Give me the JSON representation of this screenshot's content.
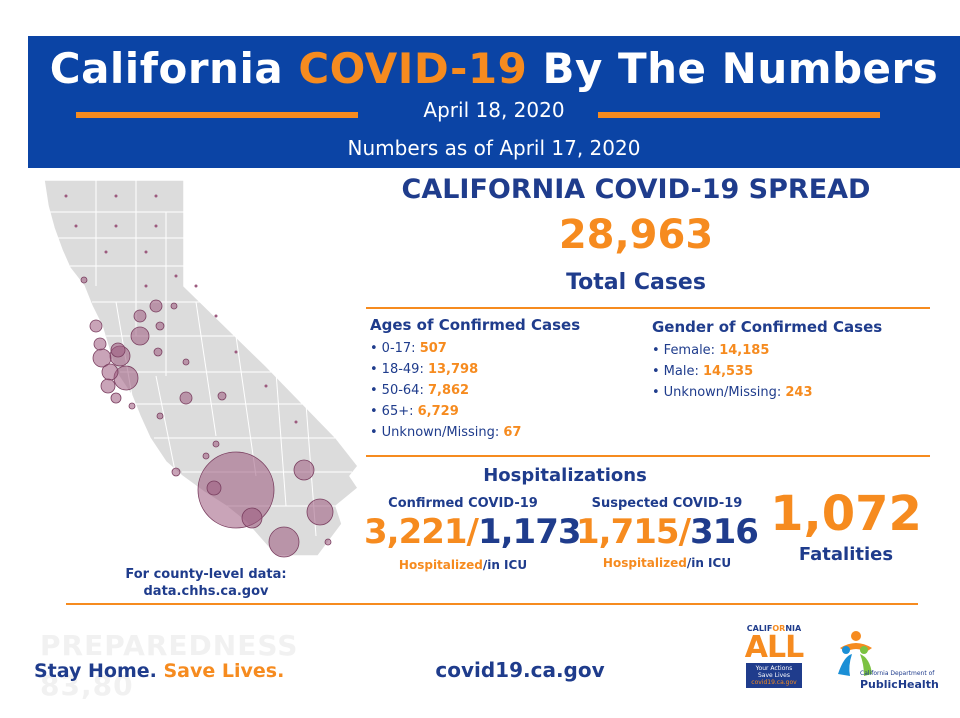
{
  "header": {
    "title_part1": "California ",
    "title_accent": "COVID-19",
    "title_part2": " By The Numbers",
    "date": "April 18, 2020",
    "as_of": "Numbers as of April 17, 2020"
  },
  "spread": {
    "title": "CALIFORNIA COVID-19 SPREAD",
    "total_cases": "28,963",
    "total_label": "Total Cases"
  },
  "ages": {
    "heading": "Ages of Confirmed Cases",
    "items": [
      {
        "label": "0-17: ",
        "value": "507"
      },
      {
        "label": "18-49: ",
        "value": "13,798"
      },
      {
        "label": "50-64: ",
        "value": "7,862"
      },
      {
        "label": "65+: ",
        "value": "6,729"
      },
      {
        "label": "Unknown/Missing: ",
        "value": "67"
      }
    ]
  },
  "gender": {
    "heading": "Gender of Confirmed Cases",
    "items": [
      {
        "label": "Female: ",
        "value": "14,185"
      },
      {
        "label": "Male: ",
        "value": "14,535"
      },
      {
        "label": "Unknown/Missing: ",
        "value": "243"
      }
    ]
  },
  "hospitalizations": {
    "title": "Hospitalizations",
    "confirmed": {
      "heading": "Confirmed COVID-19",
      "hospitalized": "3,221",
      "separator": "/",
      "icu": "1,173",
      "label_hosp": "Hospitalized",
      "label_icu": "/in ICU"
    },
    "suspected": {
      "heading": "Suspected COVID-19",
      "hospitalized": "1,715",
      "separator": "/",
      "icu": "316",
      "label_hosp": "Hospitalized",
      "label_icu": "/in ICU"
    }
  },
  "fatalities": {
    "number": "1,072",
    "label": "Fatalities"
  },
  "county_note": {
    "line1": "For county-level data:",
    "line2": "data.chhs.ca.gov"
  },
  "footer": {
    "watermark_line1": "PREPAREDNESS",
    "watermark_line2": "83,80",
    "slogan_part1": "Stay Home. ",
    "slogan_part2": "Save Lives.",
    "website": "covid19.ca.gov",
    "ca_logo_top_1": "CALIF",
    "ca_logo_top_2": "OR",
    "ca_logo_top_3": "NIA",
    "ca_logo_all": "ALL",
    "ca_logo_line1": "Your Actions",
    "ca_logo_line2": "Save Lives",
    "ca_logo_line3": "covid19.ca.gov",
    "cdph_line1": "California Department of",
    "cdph_line2": "PublicHealth"
  },
  "colors": {
    "banner_blue": "#0b44a5",
    "navy": "#1f3c8c",
    "orange": "#f68b1f",
    "map_gray": "#dcdcdc",
    "bubble": "#9c5a7e"
  }
}
